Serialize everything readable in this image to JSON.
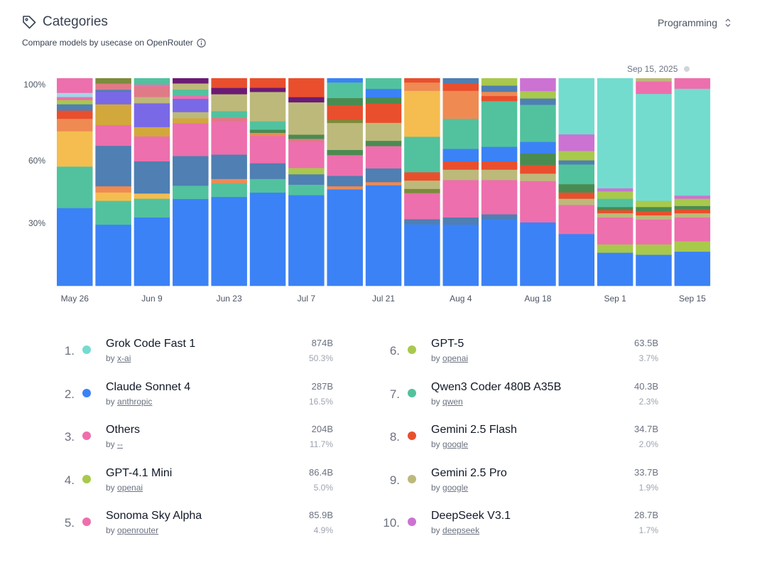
{
  "header": {
    "title": "Categories",
    "subtitle": "Compare models by usecase on OpenRouter",
    "dropdown_value": "Programming",
    "date": "Sep 15, 2025",
    "icons": {
      "title": "tag-icon",
      "info": "info-icon",
      "dropdown": "chevrons-icon"
    }
  },
  "chart_data": {
    "type": "bar",
    "stacked": true,
    "normalized": true,
    "y_ticks": [
      "100%",
      "60%",
      "30%"
    ],
    "x_tick_labels": [
      "May 26",
      "Jun 9",
      "Jun 23",
      "Jul 7",
      "Jul 21",
      "Aug 4",
      "Aug 18",
      "Sep 1",
      "Sep 15"
    ],
    "grid": false,
    "colors": {
      "blue": "#3b82f6",
      "teal": "#52c29e",
      "yellow": "#f5bd4f",
      "orange": "#ef8a53",
      "red": "#e94f2d",
      "slate": "#4f7fb3",
      "lightblue": "#a5d5e8",
      "pink": "#ed6fad",
      "lime": "#a8c94c",
      "gold": "#d2a83c",
      "violet": "#7a69e6",
      "rose": "#e07a86",
      "khaki": "#bdb97a",
      "green": "#4a8b52",
      "olive": "#7c8b3b",
      "purple": "#6b1b74",
      "orchid": "#cc72d3",
      "turquoise": "#73dccf"
    },
    "bars": [
      [
        [
          "blue",
          37.5
        ],
        [
          "teal",
          20
        ],
        [
          "yellow",
          17
        ],
        [
          "orange",
          6
        ],
        [
          "red",
          4
        ],
        [
          "slate",
          3
        ],
        [
          "lime",
          2
        ],
        [
          "pink",
          1.5
        ],
        [
          "lightblue",
          2
        ],
        [
          "pink",
          7
        ]
      ],
      [
        [
          "blue",
          29.5
        ],
        [
          "teal",
          11.5
        ],
        [
          "yellow",
          4
        ],
        [
          "orange",
          3
        ],
        [
          "slate",
          19.5
        ],
        [
          "pink",
          10
        ],
        [
          "gold",
          10
        ],
        [
          "violet",
          6
        ],
        [
          "slate",
          1
        ],
        [
          "rose",
          3
        ],
        [
          "olive",
          2.5
        ]
      ],
      [
        [
          "blue",
          33
        ],
        [
          "teal",
          9
        ],
        [
          "yellow",
          2.5
        ],
        [
          "slate",
          15.5
        ],
        [
          "pink",
          12
        ],
        [
          "gold",
          4.5
        ],
        [
          "violet",
          11.5
        ],
        [
          "khaki",
          3
        ],
        [
          "rose",
          5
        ],
        [
          "pink",
          1
        ],
        [
          "teal",
          3
        ]
      ],
      [
        [
          "blue",
          42.5
        ],
        [
          "teal",
          6.5
        ],
        [
          "slate",
          14.5
        ],
        [
          "pink",
          16
        ],
        [
          "gold",
          2.5
        ],
        [
          "khaki",
          3
        ],
        [
          "violet",
          6.5
        ],
        [
          "pink",
          1.5
        ],
        [
          "teal",
          3
        ],
        [
          "khaki",
          3
        ],
        [
          "purple",
          2.5
        ]
      ],
      [
        [
          "blue",
          42
        ],
        [
          "teal",
          6.5
        ],
        [
          "orange",
          2
        ],
        [
          "slate",
          11.5
        ],
        [
          "pink",
          15.5
        ],
        [
          "rose",
          2
        ],
        [
          "teal",
          3
        ],
        [
          "khaki",
          8
        ],
        [
          "purple",
          3
        ],
        [
          "red",
          4.5
        ]
      ],
      [
        [
          "blue",
          44.5
        ],
        [
          "teal",
          6.5
        ],
        [
          "slate",
          7.5
        ],
        [
          "pink",
          13
        ],
        [
          "orange",
          1.5
        ],
        [
          "green",
          1.5
        ],
        [
          "teal",
          4
        ],
        [
          "khaki",
          14
        ],
        [
          "purple",
          2
        ],
        [
          "red",
          4.5
        ]
      ],
      [
        [
          "blue",
          43.5
        ],
        [
          "teal",
          5
        ],
        [
          "slate",
          5
        ],
        [
          "lime",
          3
        ],
        [
          "pink",
          12.5
        ],
        [
          "rose",
          1.5
        ],
        [
          "green",
          2
        ],
        [
          "khaki",
          15.5
        ],
        [
          "purple",
          2.5
        ],
        [
          "red",
          9
        ]
      ],
      [
        [
          "blue",
          46.5
        ],
        [
          "orange",
          1.5
        ],
        [
          "slate",
          5
        ],
        [
          "pink",
          10
        ],
        [
          "green",
          2.5
        ],
        [
          "khaki",
          13
        ],
        [
          "olive",
          1.5
        ],
        [
          "red",
          7
        ],
        [
          "green",
          3.5
        ],
        [
          "teal",
          7.5
        ],
        [
          "blue",
          2
        ]
      ],
      [
        [
          "blue",
          47.5
        ],
        [
          "orange",
          1.5
        ],
        [
          "slate",
          6.5
        ],
        [
          "pink",
          10.5
        ],
        [
          "green",
          2.5
        ],
        [
          "khaki",
          8.5
        ],
        [
          "red",
          9
        ],
        [
          "green",
          3
        ],
        [
          "blue",
          4
        ],
        [
          "teal",
          5
        ]
      ],
      [
        [
          "blue",
          29.5
        ],
        [
          "slate",
          2.5
        ],
        [
          "pink",
          12.5
        ],
        [
          "olive",
          2
        ],
        [
          "khaki",
          4
        ],
        [
          "red",
          4
        ],
        [
          "teal",
          17
        ],
        [
          "yellow",
          22
        ],
        [
          "orange",
          4
        ],
        [
          "red",
          2
        ]
      ],
      [
        [
          "blue",
          29.5
        ],
        [
          "slate",
          3.5
        ],
        [
          "pink",
          18
        ],
        [
          "khaki",
          5
        ],
        [
          "red",
          4
        ],
        [
          "blue",
          6
        ],
        [
          "teal",
          14.5
        ],
        [
          "orange",
          13.5
        ],
        [
          "red",
          3.5
        ],
        [
          "slate",
          2.5
        ]
      ],
      [
        [
          "blue",
          32
        ],
        [
          "slate",
          2.5
        ],
        [
          "pink",
          16.5
        ],
        [
          "khaki",
          5
        ],
        [
          "red",
          4
        ],
        [
          "blue",
          7
        ],
        [
          "teal",
          22
        ],
        [
          "red",
          2.5
        ],
        [
          "orange",
          2
        ],
        [
          "slate",
          3
        ],
        [
          "lime",
          3.5
        ]
      ],
      [
        [
          "blue",
          30
        ],
        [
          "pink",
          19.5
        ],
        [
          "khaki",
          3.5
        ],
        [
          "red",
          4
        ],
        [
          "green",
          5.5
        ],
        [
          "blue",
          5.5
        ],
        [
          "teal",
          17.5
        ],
        [
          "slate",
          3
        ],
        [
          "lime",
          3.5
        ],
        [
          "orchid",
          6
        ]
      ],
      [
        [
          "blue",
          25
        ],
        [
          "pink",
          14
        ],
        [
          "khaki",
          3
        ],
        [
          "red",
          3
        ],
        [
          "green",
          4
        ],
        [
          "teal",
          9.5
        ],
        [
          "slate",
          2
        ],
        [
          "lime",
          4.5
        ],
        [
          "orchid",
          8
        ],
        [
          "turquoise",
          27
        ]
      ],
      [
        [
          "blue",
          16
        ],
        [
          "lime",
          4
        ],
        [
          "pink",
          13
        ],
        [
          "khaki",
          2
        ],
        [
          "red",
          1.5
        ],
        [
          "green",
          1.5
        ],
        [
          "teal",
          4
        ],
        [
          "lime",
          3.5
        ],
        [
          "orchid",
          1.5
        ],
        [
          "turquoise",
          53
        ]
      ],
      [
        [
          "blue",
          15
        ],
        [
          "lime",
          5
        ],
        [
          "pink",
          12
        ],
        [
          "khaki",
          2
        ],
        [
          "red",
          2
        ],
        [
          "green",
          2
        ],
        [
          "lime",
          3
        ],
        [
          "turquoise",
          51.5
        ],
        [
          "pink",
          6
        ],
        [
          "khaki",
          1.5
        ]
      ],
      [
        [
          "blue",
          16.5
        ],
        [
          "lime",
          5
        ],
        [
          "pink",
          11.5
        ],
        [
          "khaki",
          2
        ],
        [
          "red",
          2
        ],
        [
          "green",
          1.5
        ],
        [
          "lime",
          3.5
        ],
        [
          "orchid",
          1.5
        ],
        [
          "turquoise",
          51.5
        ],
        [
          "pink",
          5
        ]
      ]
    ]
  },
  "legend": [
    {
      "rank": "1.",
      "name": "Grok Code Fast 1",
      "by": "by",
      "author": "x-ai",
      "tokens": "874B",
      "share": "50.3%",
      "color": "#73dccf"
    },
    {
      "rank": "2.",
      "name": "Claude Sonnet 4",
      "by": "by",
      "author": "anthropic",
      "tokens": "287B",
      "share": "16.5%",
      "color": "#3b82f6"
    },
    {
      "rank": "3.",
      "name": "Others",
      "by": "by",
      "author": "--",
      "tokens": "204B",
      "share": "11.7%",
      "color": "#ed6fad"
    },
    {
      "rank": "4.",
      "name": "GPT-4.1 Mini",
      "by": "by",
      "author": "openai",
      "tokens": "86.4B",
      "share": "5.0%",
      "color": "#a8c94c"
    },
    {
      "rank": "5.",
      "name": "Sonoma Sky Alpha",
      "by": "by",
      "author": "openrouter",
      "tokens": "85.9B",
      "share": "4.9%",
      "color": "#ed6fad"
    },
    {
      "rank": "6.",
      "name": "GPT-5",
      "by": "by",
      "author": "openai",
      "tokens": "63.5B",
      "share": "3.7%",
      "color": "#a8c94c"
    },
    {
      "rank": "7.",
      "name": "Qwen3 Coder 480B A35B",
      "by": "by",
      "author": "qwen",
      "tokens": "40.3B",
      "share": "2.3%",
      "color": "#52c29e"
    },
    {
      "rank": "8.",
      "name": "Gemini 2.5 Flash",
      "by": "by",
      "author": "google",
      "tokens": "34.7B",
      "share": "2.0%",
      "color": "#e94f2d"
    },
    {
      "rank": "9.",
      "name": "Gemini 2.5 Pro",
      "by": "by",
      "author": "google",
      "tokens": "33.7B",
      "share": "1.9%",
      "color": "#bdb97a"
    },
    {
      "rank": "10.",
      "name": "DeepSeek V3.1",
      "by": "by",
      "author": "deepseek",
      "tokens": "28.7B",
      "share": "1.7%",
      "color": "#cc72d3"
    }
  ]
}
